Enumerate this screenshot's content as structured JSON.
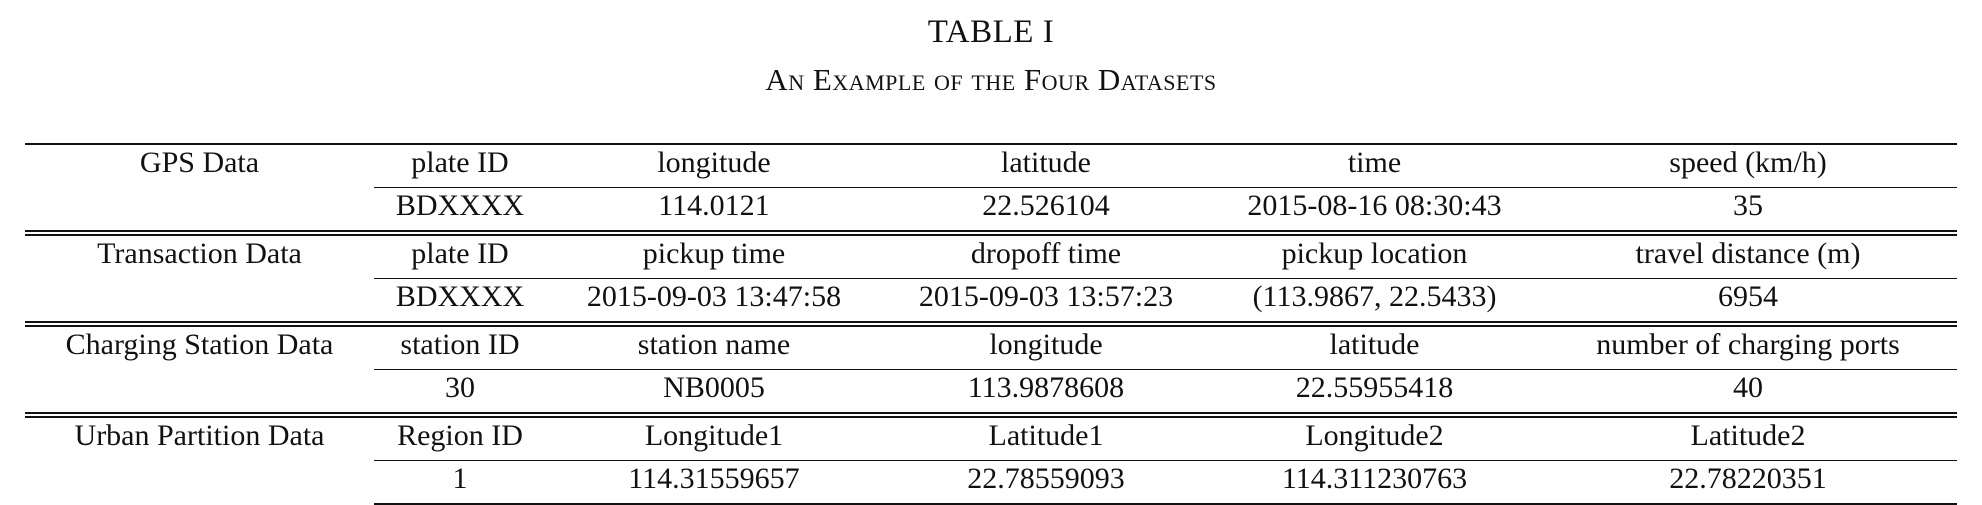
{
  "caption": {
    "label": "TABLE I",
    "title": "An Example of the Four Datasets"
  },
  "datasets": [
    {
      "name": "GPS Data",
      "fields": [
        "plate ID",
        "longitude",
        "latitude",
        "time",
        "speed (km/h)"
      ],
      "values": [
        "BDXXXX",
        "114.0121",
        "22.526104",
        "2015-08-16 08:30:43",
        "35"
      ]
    },
    {
      "name": "Transaction Data",
      "fields": [
        "plate ID",
        "pickup time",
        "dropoff time",
        "pickup location",
        "travel distance (m)"
      ],
      "values": [
        "BDXXXX",
        "2015-09-03 13:47:58",
        "2015-09-03 13:57:23",
        "(113.9867, 22.5433)",
        "6954"
      ]
    },
    {
      "name": "Charging Station Data",
      "fields": [
        "station ID",
        "station name",
        "longitude",
        "latitude",
        "number of charging ports"
      ],
      "values": [
        "30",
        "NB0005",
        "113.9878608",
        "22.55955418",
        "40"
      ]
    },
    {
      "name": "Urban Partition Data",
      "fields": [
        "Region ID",
        "Longitude1",
        "Latitude1",
        "Longitude2",
        "Latitude2"
      ],
      "values": [
        "1",
        "114.31559657",
        "22.78559093",
        "114.311230763",
        "22.78220351"
      ]
    }
  ]
}
